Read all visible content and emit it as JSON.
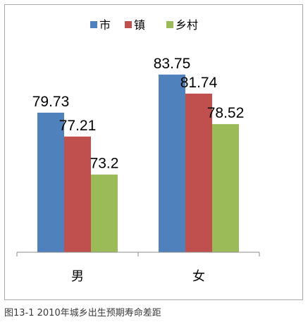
{
  "caption": "图13-1 2010年城乡出生预期寿命差距",
  "chart_data": {
    "type": "bar",
    "categories": [
      "男",
      "女"
    ],
    "series": [
      {
        "name": "市",
        "values": [
          79.73,
          83.75
        ],
        "color": "#4f81bd"
      },
      {
        "name": "镇",
        "values": [
          77.21,
          81.74
        ],
        "color": "#c0504d"
      },
      {
        "name": "乡村",
        "values": [
          73.2,
          78.52
        ],
        "color": "#9bbb59"
      }
    ],
    "ylim": [
      65,
      86
    ],
    "legend_position": "top",
    "grid": false,
    "data_labels": true,
    "title": "",
    "xlabel": "",
    "ylabel": ""
  }
}
